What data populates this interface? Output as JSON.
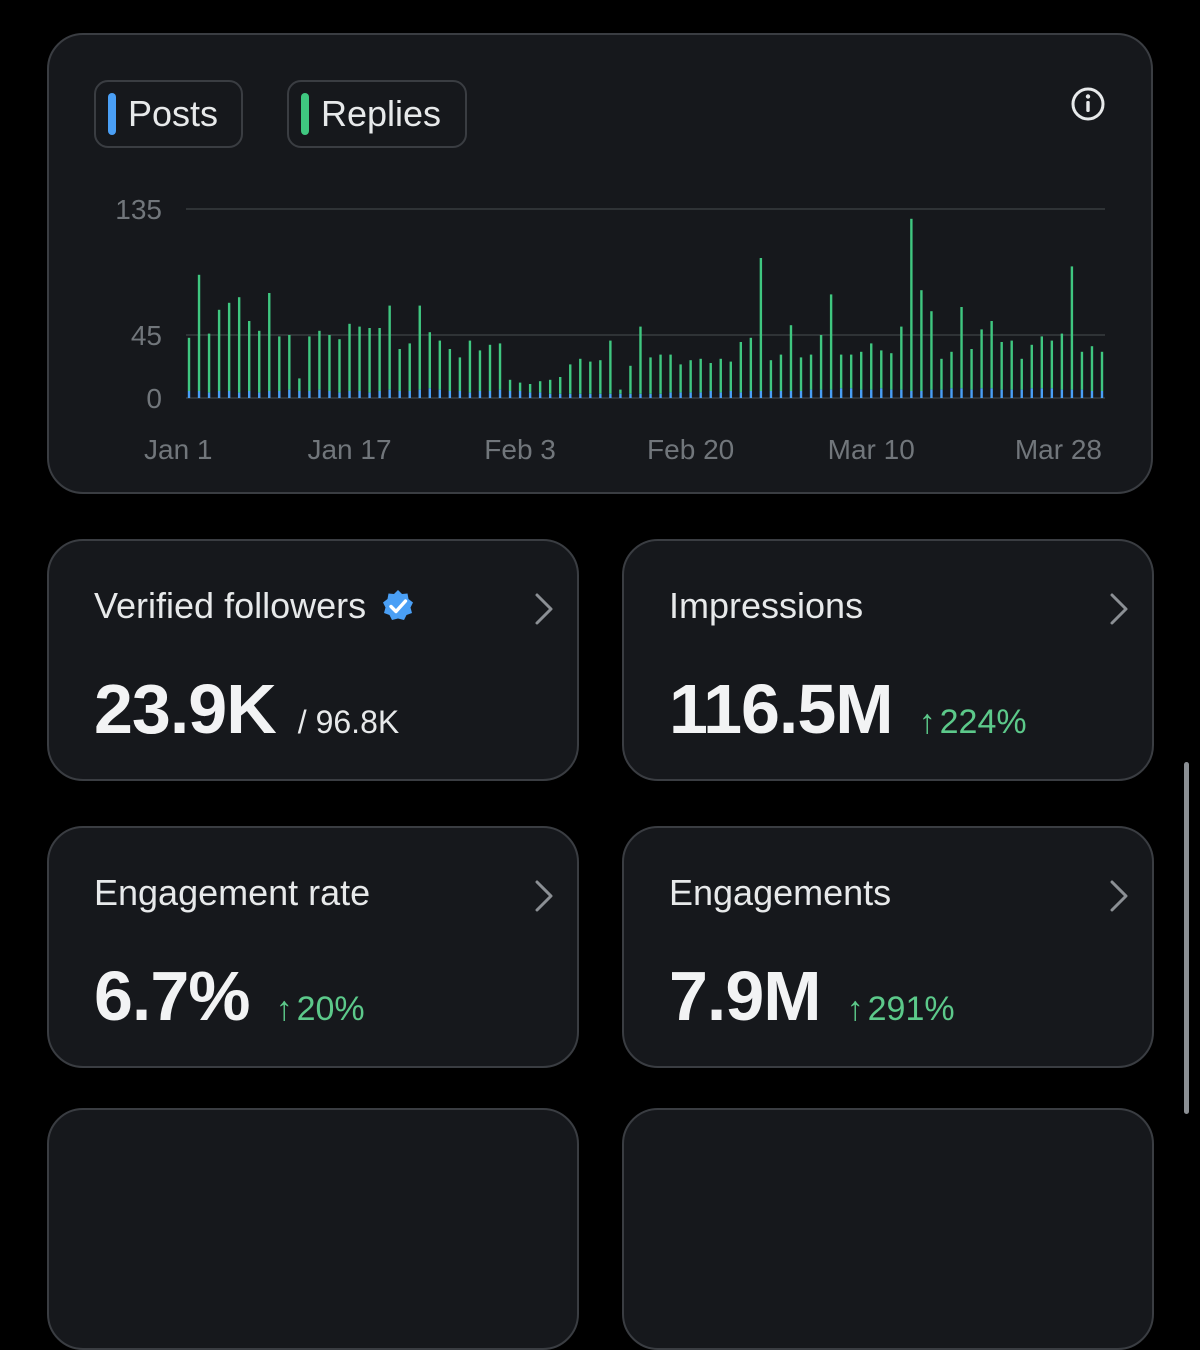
{
  "legend": {
    "posts_label": "Posts",
    "replies_label": "Replies"
  },
  "info_icon": "info-circle-icon",
  "colors": {
    "posts": "#4a9ff5",
    "replies": "#3fc780",
    "positive_change": "#5cc98a",
    "verified_badge": "#4a9ff5"
  },
  "chart_data": {
    "type": "bar",
    "stacked": true,
    "ylim": [
      0,
      135
    ],
    "y_ticks": [
      0,
      45,
      135
    ],
    "x_ticks": [
      "Jan 1",
      "Jan 17",
      "Feb 3",
      "Feb 20",
      "Mar 10",
      "Mar 28"
    ],
    "x_tick_index": [
      0,
      16,
      33,
      50,
      68,
      86
    ],
    "series": [
      {
        "name": "Posts",
        "values": [
          5,
          5,
          4,
          5,
          5,
          4,
          5,
          4,
          5,
          5,
          6,
          5,
          5,
          6,
          5,
          4,
          5,
          5,
          4,
          5,
          6,
          5,
          5,
          6,
          7,
          6,
          5,
          5,
          4,
          5,
          5,
          6,
          5,
          5,
          4,
          4,
          3,
          3,
          3,
          3,
          3,
          3,
          3,
          3,
          3,
          3,
          3,
          3,
          4,
          4,
          4,
          4,
          5,
          4,
          5,
          4,
          5,
          5,
          5,
          5,
          5,
          5,
          6,
          6,
          6,
          7,
          7,
          6,
          6,
          7,
          6,
          6,
          5,
          5,
          6,
          6,
          7,
          7,
          6,
          7,
          7,
          6,
          6,
          6,
          7,
          7,
          7,
          6,
          6,
          6,
          5,
          5
        ]
      },
      {
        "name": "Replies",
        "values": [
          38,
          83,
          42,
          58,
          63,
          68,
          50,
          44,
          70,
          39,
          39,
          9,
          39,
          42,
          40,
          38,
          48,
          46,
          46,
          45,
          60,
          30,
          34,
          60,
          40,
          35,
          30,
          24,
          37,
          29,
          33,
          33,
          8,
          6,
          6,
          8,
          10,
          12,
          21,
          25,
          23,
          24,
          38,
          3,
          20,
          48,
          26,
          28,
          27,
          20,
          23,
          24,
          20,
          24,
          21,
          36,
          38,
          95,
          22,
          26,
          47,
          24,
          25,
          39,
          68,
          24,
          24,
          27,
          33,
          27,
          26,
          45,
          123,
          72,
          56,
          22,
          26,
          58,
          29,
          42,
          48,
          34,
          35,
          22,
          31,
          37,
          34,
          40,
          88,
          27,
          32,
          28
        ]
      }
    ]
  },
  "cards": {
    "verified": {
      "title": "Verified followers",
      "value": "23.9K",
      "sub": "/ 96.8K"
    },
    "impressions": {
      "title": "Impressions",
      "value": "116.5M",
      "change": "224%"
    },
    "engagement_rate": {
      "title": "Engagement rate",
      "value": "6.7%",
      "change": "20%"
    },
    "engagements": {
      "title": "Engagements",
      "value": "7.9M",
      "change": "291%"
    },
    "up_arrow": "↑"
  }
}
